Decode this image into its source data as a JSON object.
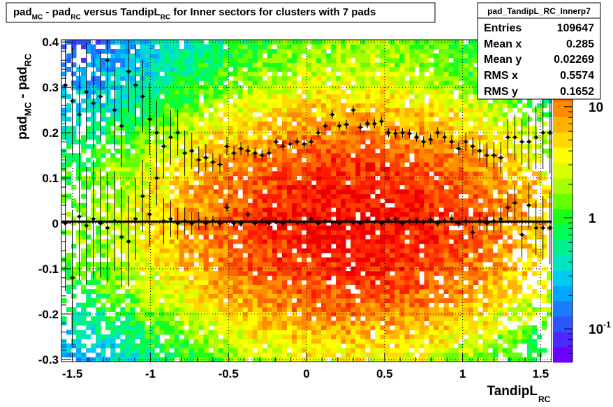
{
  "chart_data": {
    "type": "heatmap",
    "title": {
      "parts": [
        {
          "t": "pad",
          "s": "normal"
        },
        {
          "t": "MC",
          "s": "sub"
        },
        {
          "t": " - pad",
          "s": "normal"
        },
        {
          "t": "RC",
          "s": "sub"
        },
        {
          "t": " versus TandipL",
          "s": "normal"
        },
        {
          "t": "RC",
          "s": "sub"
        },
        {
          "t": " for Inner sectors for clusters with 7 pads",
          "s": "normal"
        }
      ]
    },
    "xlabel": {
      "main": "TandipL",
      "sub": "RC"
    },
    "ylabel": {
      "parts": [
        {
          "t": "pad",
          "s": "normal"
        },
        {
          "t": "MC",
          "s": "sub"
        },
        {
          "t": " - pad",
          "s": "normal"
        },
        {
          "t": "RC",
          "s": "sub"
        }
      ]
    },
    "xlim": [
      -1.57,
      1.57
    ],
    "ylim": [
      -0.305,
      0.405
    ],
    "x_ticks": [
      {
        "v": -1.5,
        "label": "-1.5"
      },
      {
        "v": -1,
        "label": "-1"
      },
      {
        "v": -0.5,
        "label": "-0.5"
      },
      {
        "v": 0,
        "label": "0"
      },
      {
        "v": 0.5,
        "label": "0.5"
      },
      {
        "v": 1,
        "label": "1"
      },
      {
        "v": 1.5,
        "label": "1.5"
      }
    ],
    "y_ticks": [
      {
        "v": -0.3,
        "label": "-0.3"
      },
      {
        "v": -0.2,
        "label": "-0.2"
      },
      {
        "v": -0.1,
        "label": "-0.1"
      },
      {
        "v": 0,
        "label": "0"
      },
      {
        "v": 0.1,
        "label": "0.1"
      },
      {
        "v": 0.2,
        "label": "0.2"
      },
      {
        "v": 0.3,
        "label": "0.3"
      },
      {
        "v": 0.4,
        "label": "0.4"
      }
    ],
    "grid": true,
    "z_scale": "log",
    "z_range": [
      0.05,
      40
    ],
    "z_ticks": [
      {
        "v": 10,
        "base": "10",
        "exp": ""
      },
      {
        "v": 1,
        "base": "1",
        "exp": ""
      },
      {
        "v": 0.1,
        "base": "10",
        "exp": "-1"
      }
    ],
    "palette": [
      "#6b00ff",
      "#4c2aff",
      "#2e54ff",
      "#1a7dff",
      "#00a6ff",
      "#00ccf0",
      "#00e6c0",
      "#00f090",
      "#00ff55",
      "#1aff1a",
      "#66ff00",
      "#a6ff00",
      "#d9ff00",
      "#ffff00",
      "#ffd900",
      "#ffb300",
      "#ff8c00",
      "#ff6600",
      "#ff3c00",
      "#ff1a00",
      "#ee0000"
    ],
    "stats_box": {
      "name": "pad_TandipL_RC_Innerp7",
      "entries_label": "Entries",
      "entries": "109647",
      "meanx_label": "Mean x",
      "meanx": "0.285",
      "meany_label": "Mean y",
      "meany": "0.02269",
      "rmsx_label": "RMS x",
      "rmsx": "0.5574",
      "rmsy_label": "RMS y",
      "rmsy": "0.1652"
    },
    "fit_line": {
      "y": 0.004
    },
    "profile_upper": [
      [
        -1.545,
        0.305,
        0.12
      ],
      [
        -1.5,
        0.27,
        0.12
      ],
      [
        -1.455,
        0.24,
        0.11
      ],
      [
        -1.41,
        0.29,
        0.11
      ],
      [
        -1.365,
        0.265,
        0.1
      ],
      [
        -1.32,
        0.28,
        0.1
      ],
      [
        -1.275,
        0.36,
        0.1
      ],
      [
        -1.23,
        0.25,
        0.09
      ],
      [
        -1.185,
        0.215,
        0.09
      ],
      [
        -1.14,
        0.335,
        0.09
      ],
      [
        -1.095,
        0.305,
        0.09
      ],
      [
        -1.05,
        0.28,
        0.08
      ],
      [
        -1.005,
        0.23,
        0.08
      ],
      [
        -0.96,
        0.2,
        0.07
      ],
      [
        -0.915,
        0.17,
        0.07
      ],
      [
        -0.87,
        0.19,
        0.06
      ],
      [
        -0.825,
        0.2,
        0.05
      ],
      [
        -0.78,
        0.155,
        0.05
      ],
      [
        -0.735,
        0.16,
        0.04
      ],
      [
        -0.69,
        0.14,
        0.03
      ],
      [
        -0.645,
        0.145,
        0.03
      ],
      [
        -0.6,
        0.135,
        0.02
      ],
      [
        -0.555,
        0.13,
        0.02
      ],
      [
        -0.51,
        0.17,
        0.02
      ],
      [
        -0.465,
        0.155,
        0.015
      ],
      [
        -0.42,
        0.165,
        0.015
      ],
      [
        -0.375,
        0.16,
        0.012
      ],
      [
        -0.33,
        0.155,
        0.012
      ],
      [
        -0.285,
        0.15,
        0.012
      ],
      [
        -0.24,
        0.155,
        0.012
      ],
      [
        -0.195,
        0.18,
        0.01
      ],
      [
        -0.15,
        0.17,
        0.01
      ],
      [
        -0.105,
        0.175,
        0.01
      ],
      [
        -0.06,
        0.18,
        0.01
      ],
      [
        -0.015,
        0.175,
        0.01
      ],
      [
        0.03,
        0.18,
        0.01
      ],
      [
        0.075,
        0.2,
        0.01
      ],
      [
        0.12,
        0.215,
        0.01
      ],
      [
        0.165,
        0.24,
        0.01
      ],
      [
        0.21,
        0.215,
        0.01
      ],
      [
        0.255,
        0.218,
        0.01
      ],
      [
        0.3,
        0.25,
        0.01
      ],
      [
        0.345,
        0.212,
        0.01
      ],
      [
        0.39,
        0.22,
        0.01
      ],
      [
        0.435,
        0.22,
        0.01
      ],
      [
        0.48,
        0.225,
        0.01
      ],
      [
        0.525,
        0.2,
        0.01
      ],
      [
        0.57,
        0.198,
        0.01
      ],
      [
        0.615,
        0.2,
        0.01
      ],
      [
        0.66,
        0.198,
        0.01
      ],
      [
        0.705,
        0.19,
        0.01
      ],
      [
        0.75,
        0.18,
        0.012
      ],
      [
        0.795,
        0.185,
        0.012
      ],
      [
        0.84,
        0.2,
        0.012
      ],
      [
        0.885,
        0.19,
        0.012
      ],
      [
        0.93,
        0.18,
        0.015
      ],
      [
        0.975,
        0.165,
        0.015
      ],
      [
        1.02,
        0.18,
        0.02
      ],
      [
        1.065,
        0.17,
        0.02
      ],
      [
        1.11,
        0.16,
        0.025
      ],
      [
        1.155,
        0.15,
        0.03
      ],
      [
        1.2,
        0.15,
        0.03
      ],
      [
        1.245,
        0.145,
        0.035
      ],
      [
        1.29,
        0.19,
        0.04
      ],
      [
        1.335,
        0.19,
        0.05
      ],
      [
        1.38,
        0.18,
        0.05
      ],
      [
        1.425,
        0.18,
        0.06
      ],
      [
        1.47,
        0.19,
        0.07
      ],
      [
        1.515,
        0.2,
        0.08
      ],
      [
        1.56,
        0.2,
        0.09
      ]
    ],
    "profile_lower": [
      [
        -1.545,
        0.0,
        0.15
      ],
      [
        -1.5,
        -0.12,
        0.15
      ],
      [
        -1.455,
        0.015,
        0.14
      ],
      [
        -1.41,
        -0.005,
        0.13
      ],
      [
        -1.365,
        0.01,
        0.13
      ],
      [
        -1.32,
        0.0,
        0.12
      ],
      [
        -1.275,
        -0.01,
        0.12
      ],
      [
        -1.23,
        0.005,
        0.11
      ],
      [
        -1.185,
        -0.03,
        0.11
      ],
      [
        -1.14,
        -0.04,
        0.1
      ],
      [
        -1.095,
        0.01,
        0.09
      ],
      [
        -1.05,
        0.06,
        0.08
      ],
      [
        -1.005,
        0.02,
        0.07
      ],
      [
        -0.96,
        0.1,
        0.06
      ],
      [
        -0.915,
        0.005,
        0.05
      ],
      [
        -0.87,
        0.01,
        0.04
      ],
      [
        -0.825,
        0.0,
        0.035
      ],
      [
        -0.78,
        0.005,
        0.03
      ],
      [
        -0.735,
        0.0,
        0.025
      ],
      [
        -0.69,
        0.005,
        0.02
      ],
      [
        -0.645,
        0.0,
        0.015
      ],
      [
        -0.6,
        0.005,
        0.012
      ],
      [
        -0.555,
        0.0,
        0.01
      ],
      [
        -0.51,
        0.035,
        0.01
      ],
      [
        -0.465,
        0.0,
        0.008
      ],
      [
        -0.42,
        0.0,
        0.008
      ],
      [
        -0.375,
        0.02,
        0.007
      ],
      [
        -0.33,
        0.0,
        0.006
      ],
      [
        -0.285,
        0.005,
        0.006
      ],
      [
        -0.24,
        0.0,
        0.005
      ],
      [
        -0.195,
        0.003,
        0.005
      ],
      [
        -0.15,
        0.0,
        0.005
      ],
      [
        -0.105,
        0.005,
        0.005
      ],
      [
        -0.06,
        0.002,
        0.005
      ],
      [
        -0.015,
        0.003,
        0.004
      ],
      [
        0.03,
        0.01,
        0.004
      ],
      [
        0.075,
        0.0,
        0.004
      ],
      [
        0.12,
        0.005,
        0.004
      ],
      [
        0.165,
        0.003,
        0.004
      ],
      [
        0.21,
        0.0,
        0.004
      ],
      [
        0.255,
        0.005,
        0.004
      ],
      [
        0.3,
        0.002,
        0.004
      ],
      [
        0.345,
        0.0,
        0.004
      ],
      [
        0.39,
        0.005,
        0.004
      ],
      [
        0.435,
        0.003,
        0.004
      ],
      [
        0.48,
        0.0,
        0.004
      ],
      [
        0.525,
        0.006,
        0.005
      ],
      [
        0.57,
        0.01,
        0.005
      ],
      [
        0.615,
        0.0,
        0.005
      ],
      [
        0.66,
        0.005,
        0.005
      ],
      [
        0.705,
        0.005,
        0.006
      ],
      [
        0.75,
        0.003,
        0.006
      ],
      [
        0.795,
        0.008,
        0.007
      ],
      [
        0.84,
        0.0,
        0.008
      ],
      [
        0.885,
        0.005,
        0.008
      ],
      [
        0.93,
        0.01,
        0.01
      ],
      [
        0.975,
        0.0,
        0.01
      ],
      [
        1.02,
        0.005,
        0.012
      ],
      [
        1.065,
        -0.02,
        0.015
      ],
      [
        1.11,
        0.005,
        0.02
      ],
      [
        1.155,
        0.0,
        0.02
      ],
      [
        1.2,
        0.005,
        0.025
      ],
      [
        1.245,
        0.01,
        0.03
      ],
      [
        1.29,
        0.035,
        0.035
      ],
      [
        1.335,
        0.045,
        0.04
      ],
      [
        1.38,
        -0.025,
        0.05
      ],
      [
        1.425,
        0.04,
        0.05
      ],
      [
        1.47,
        -0.01,
        0.06
      ],
      [
        1.515,
        -0.01,
        0.07
      ],
      [
        1.56,
        -0.01,
        0.08
      ]
    ]
  }
}
